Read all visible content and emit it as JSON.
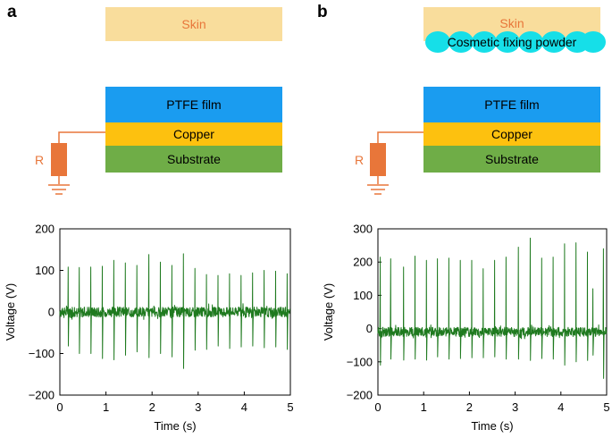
{
  "panels": [
    {
      "letter": "a",
      "diagram": {
        "skin": "Skin",
        "powder": null,
        "ptfe": "PTFE film",
        "copper": "Copper",
        "substrate": "Substrate",
        "resistor": "R"
      }
    },
    {
      "letter": "b",
      "diagram": {
        "skin": "Skin",
        "powder": "Cosmetic fixing powder",
        "ptfe": "PTFE film",
        "copper": "Copper",
        "substrate": "Substrate",
        "resistor": "R"
      }
    }
  ],
  "colors": {
    "skin": "#f9dd9c",
    "powder": "#16dfe8",
    "ptfe": "#1a9cf0",
    "copper": "#fdc10f",
    "substrate": "#6fad47",
    "wire": "#e8763a",
    "resistor": "#e8763a",
    "signal": "#1f7a1f"
  },
  "chart_data": [
    {
      "type": "line",
      "panel": "a",
      "xlabel": "Time (s)",
      "ylabel": "Voltage (V)",
      "xlim": [
        0,
        5
      ],
      "ylim": [
        -200,
        200
      ],
      "xticks": [
        "0",
        "1",
        "2",
        "3",
        "4",
        "5"
      ],
      "yticks": [
        "200",
        "100",
        "0",
        "−100",
        "−200"
      ],
      "baseline": 0,
      "noise": 12,
      "series": [
        {
          "name": "Voltage",
          "peaks_t": [
            0.18,
            0.42,
            0.67,
            0.92,
            1.17,
            1.42,
            1.67,
            1.93,
            2.18,
            2.43,
            2.68,
            2.93,
            3.18,
            3.43,
            3.68,
            3.93,
            4.18,
            4.43,
            4.68,
            4.93
          ],
          "peaks_v": [
            108,
            107,
            108,
            110,
            124,
            118,
            112,
            138,
            120,
            112,
            140,
            105,
            90,
            88,
            92,
            88,
            94,
            100,
            98,
            92
          ],
          "troughs_v": [
            -82,
            -100,
            -100,
            -112,
            -115,
            -104,
            -96,
            -110,
            -100,
            -108,
            -136,
            -92,
            -90,
            -82,
            -88,
            -84,
            -82,
            -86,
            -84,
            -90
          ]
        }
      ]
    },
    {
      "type": "line",
      "panel": "b",
      "xlabel": "Time (s)",
      "ylabel": "Voltage (V)",
      "xlim": [
        0,
        5
      ],
      "ylim": [
        -200,
        300
      ],
      "xticks": [
        "0",
        "1",
        "2",
        "3",
        "4",
        "5"
      ],
      "yticks": [
        "300",
        "200",
        "100",
        "0",
        "−100",
        "−200"
      ],
      "baseline": -10,
      "noise": 14,
      "series": [
        {
          "name": "Voltage",
          "peaks_t": [
            0.05,
            0.28,
            0.56,
            0.81,
            1.06,
            1.3,
            1.55,
            1.8,
            2.05,
            2.3,
            2.55,
            2.8,
            3.07,
            3.33,
            3.58,
            3.83,
            4.08,
            4.33,
            4.58,
            4.7,
            4.93
          ],
          "peaks_v": [
            215,
            210,
            185,
            218,
            205,
            210,
            212,
            205,
            205,
            180,
            205,
            215,
            245,
            272,
            212,
            215,
            255,
            258,
            230,
            120,
            240
          ],
          "troughs_v": [
            -110,
            -92,
            -95,
            -92,
            -95,
            -85,
            -92,
            -90,
            -88,
            -88,
            -85,
            -92,
            -92,
            -96,
            -90,
            -92,
            -110,
            -100,
            -96,
            -80,
            -150
          ]
        }
      ]
    }
  ]
}
